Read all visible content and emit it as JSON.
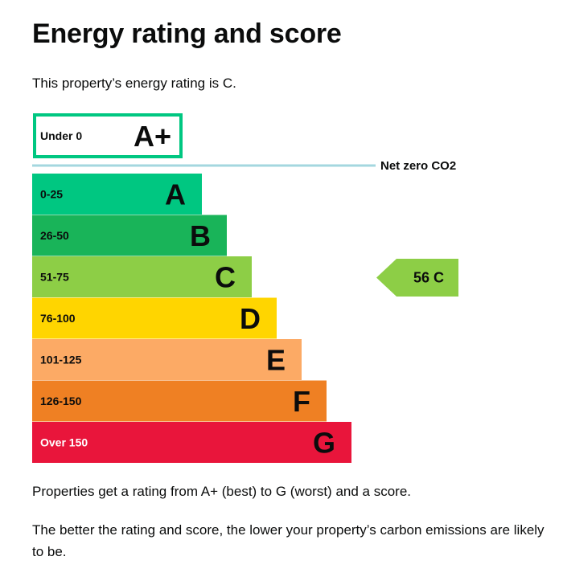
{
  "header": {
    "title": "Energy rating and score"
  },
  "intro": "This property’s energy rating is C.",
  "chart_data": {
    "type": "bar",
    "title": "",
    "bands": [
      {
        "letter": "A+",
        "range": "Under 0",
        "color": "#00c781",
        "style": "outline"
      },
      {
        "letter": "A",
        "range": "0-25",
        "color": "#00c781"
      },
      {
        "letter": "B",
        "range": "26-50",
        "color": "#19b459"
      },
      {
        "letter": "C",
        "range": "51-75",
        "color": "#8dce46"
      },
      {
        "letter": "D",
        "range": "76-100",
        "color": "#ffd500"
      },
      {
        "letter": "E",
        "range": "101-125",
        "color": "#fcaa65"
      },
      {
        "letter": "F",
        "range": "126-150",
        "color": "#ef8023"
      },
      {
        "letter": "G",
        "range": "Over 150",
        "color": "#e9153b"
      }
    ],
    "threshold": {
      "label": "Net zero CO2",
      "color": "#a4d7df"
    },
    "current": {
      "score": 56,
      "rating": "C",
      "label": "56 C",
      "color": "#8dce46"
    }
  },
  "notes": [
    "Properties get a rating from A+ (best) to G (worst) and a score.",
    "The better the rating and score, the lower your property’s carbon emissions are likely to be."
  ]
}
